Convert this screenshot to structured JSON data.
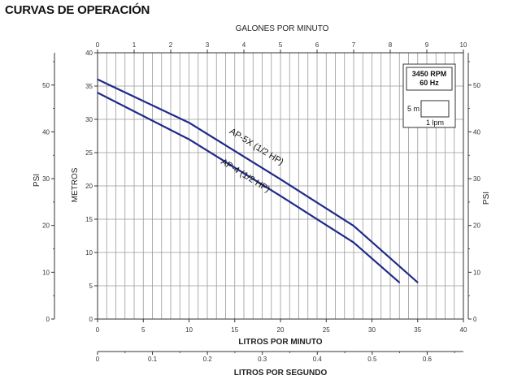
{
  "title": "CURVAS DE OPERACIÓN",
  "chart_data": {
    "type": "line",
    "title": "CURVAS DE OPERACIÓN",
    "x_axis_bottom": {
      "label": "LITROS POR MINUTO",
      "range": [
        0,
        40
      ],
      "ticks": [
        "0",
        "5",
        "10",
        "15",
        "20",
        "25",
        "30",
        "35",
        "40"
      ]
    },
    "x_axis_top": {
      "label": "GALONES POR MINUTO",
      "range": [
        0,
        10
      ],
      "ticks": [
        "0",
        "1",
        "2",
        "3",
        "4",
        "5",
        "6",
        "7",
        "8",
        "9",
        "10"
      ]
    },
    "x_axis_secondary": {
      "label": "LITROS POR SEGUNDO",
      "range": [
        0,
        0.666
      ],
      "ticks": [
        "0",
        "0.1",
        "0.2",
        "0.3",
        "0.4",
        "0.5",
        "0.6"
      ]
    },
    "y_axis_left_inner": {
      "label": "METROS",
      "range": [
        0,
        40
      ],
      "ticks": [
        "0",
        "5",
        "10",
        "15",
        "20",
        "25",
        "30",
        "35",
        "40"
      ]
    },
    "y_axis_left_outer": {
      "label": "PSI",
      "range": [
        0,
        56.9
      ],
      "ticks": [
        "0",
        "10",
        "20",
        "30",
        "40",
        "50"
      ]
    },
    "y_axis_right": {
      "label": "PSI",
      "range": [
        0,
        56.9
      ],
      "ticks": [
        "0",
        "10",
        "20",
        "30",
        "40",
        "50"
      ]
    },
    "grid": true,
    "series": [
      {
        "name": "AP-5X (1/2 HP)",
        "x": [
          0,
          10,
          20,
          28,
          35
        ],
        "y": [
          36,
          29.5,
          21,
          14,
          5.5
        ]
      },
      {
        "name": "AP-4 (1/2 HP)",
        "x": [
          0,
          10,
          20,
          28,
          33
        ],
        "y": [
          34,
          27,
          18.5,
          11.5,
          5.5
        ]
      }
    ],
    "legend_box": {
      "rpm": "3450 RPM",
      "hz": "60 Hz",
      "scale_y": "5 m",
      "scale_x": "1 lpm"
    }
  }
}
